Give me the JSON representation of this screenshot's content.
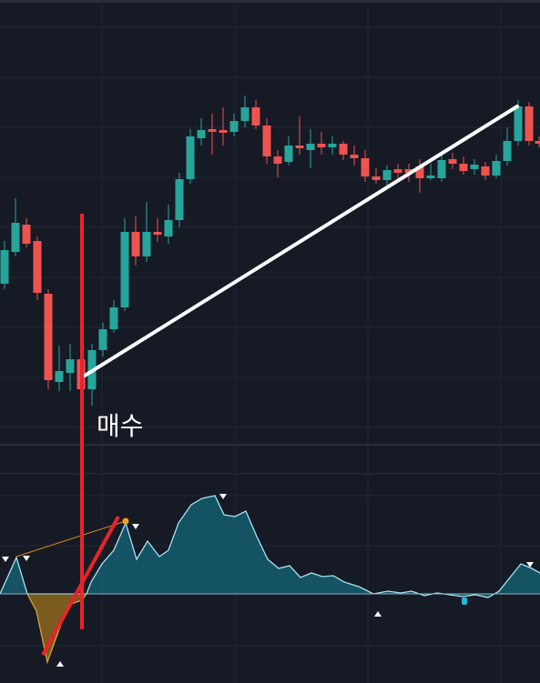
{
  "annotation": "매수"
}
